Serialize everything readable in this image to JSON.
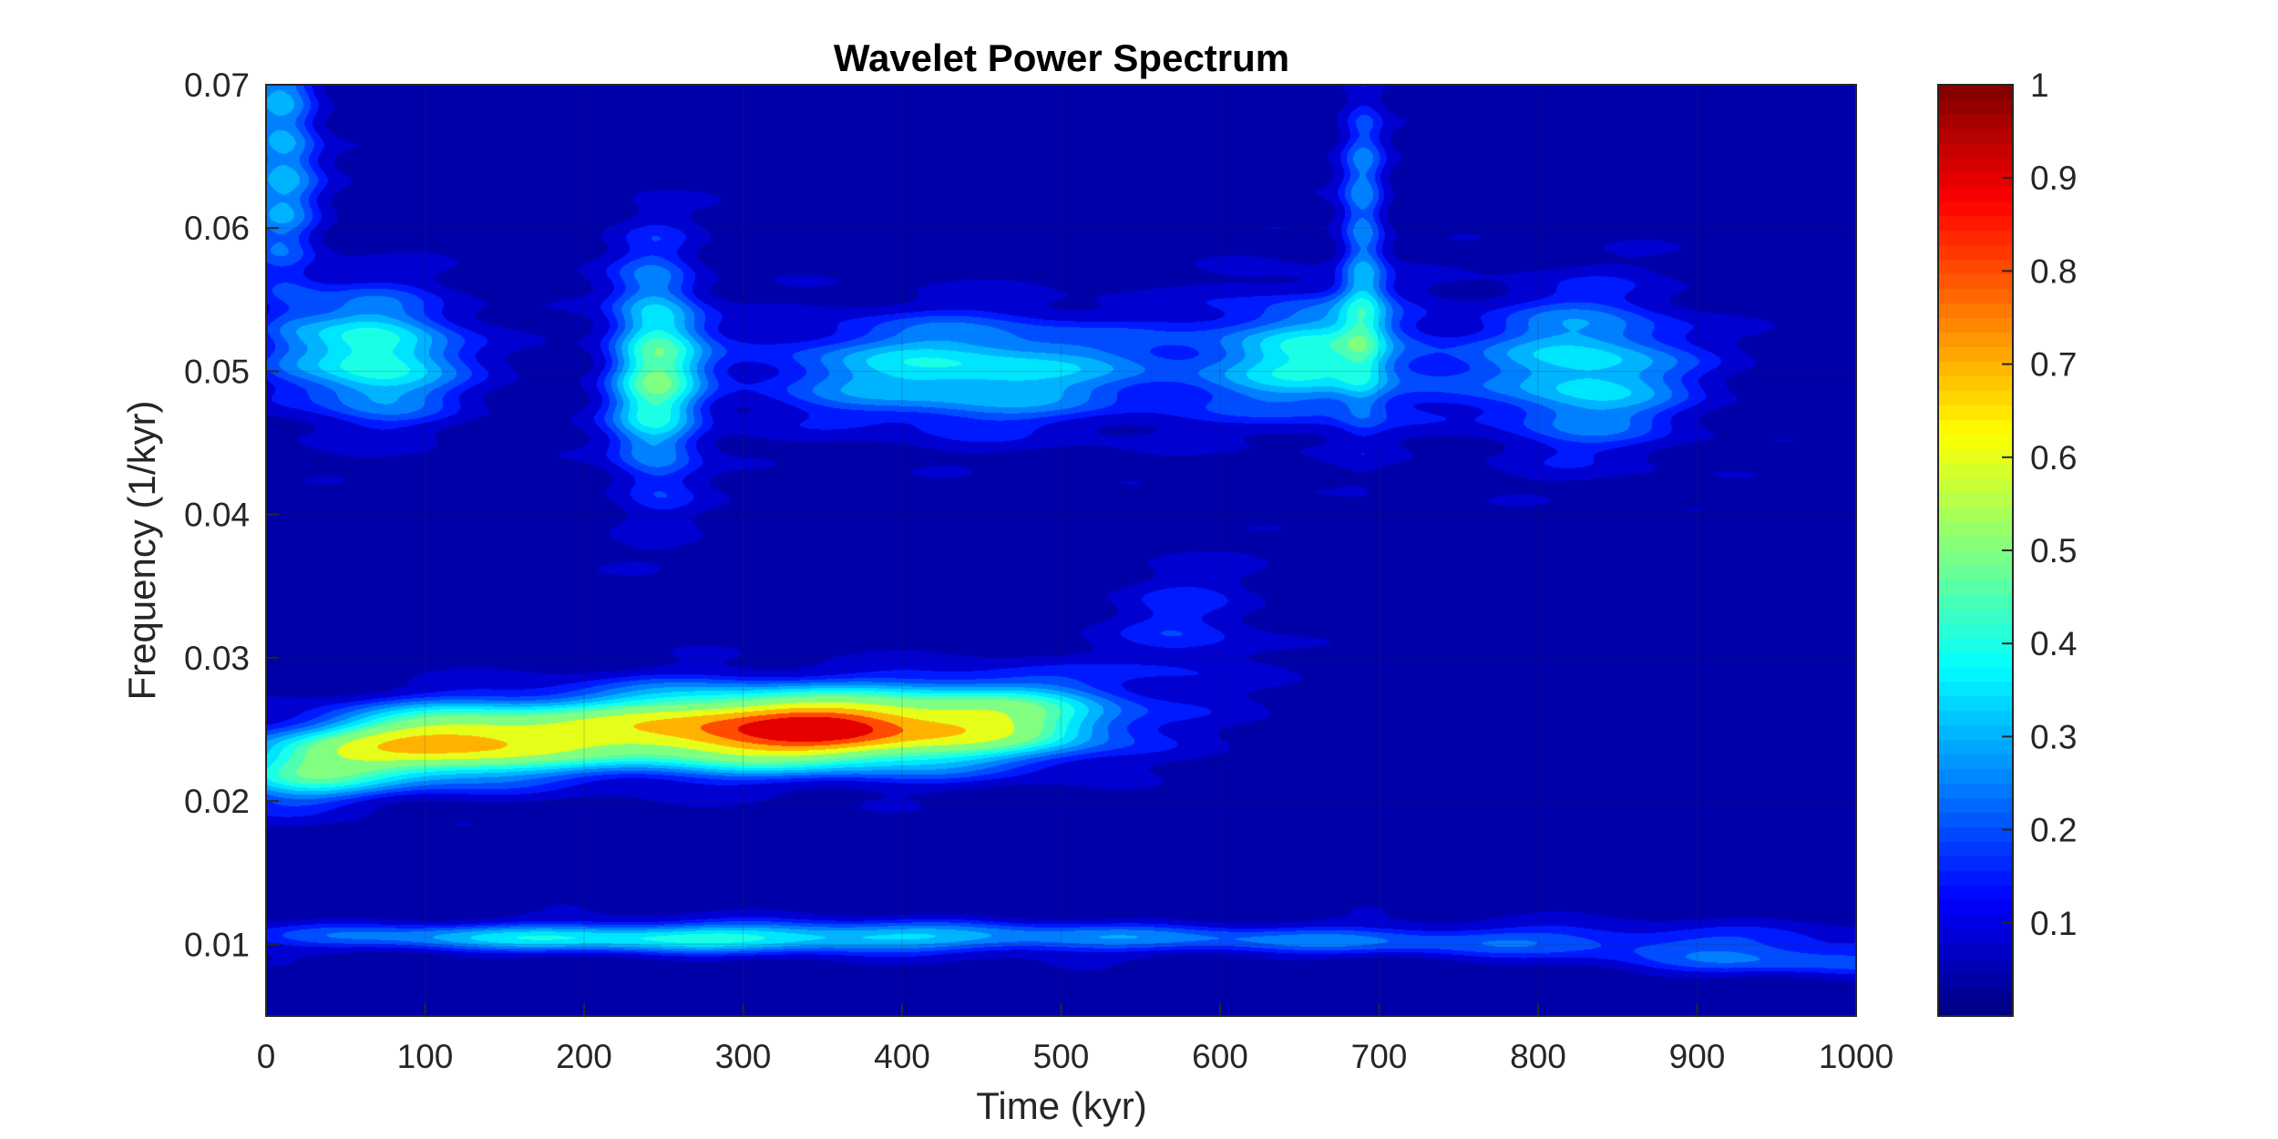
{
  "chart_data": {
    "type": "heatmap",
    "subtype": "filled-contour",
    "title": "Wavelet Power Spectrum",
    "xlabel": "Time (kyr)",
    "ylabel": "Frequency (1/kyr)",
    "xlim": [
      0,
      1000
    ],
    "ylim": [
      0.005,
      0.07
    ],
    "xticks": [
      0,
      100,
      200,
      300,
      400,
      500,
      600,
      700,
      800,
      900,
      1000
    ],
    "yticks": [
      0.01,
      0.02,
      0.03,
      0.04,
      0.05,
      0.06,
      0.07
    ],
    "ytick_labels": [
      "0.01",
      "0.02",
      "0.03",
      "0.04",
      "0.05",
      "0.06",
      "0.07"
    ],
    "grid": true,
    "colormap": "jet",
    "colorbar": {
      "range": [
        0,
        1
      ],
      "ticks": [
        0.1,
        0.2,
        0.3,
        0.4,
        0.5,
        0.6,
        0.7,
        0.8,
        0.9,
        1
      ],
      "tick_labels": [
        "0.1",
        "0.2",
        "0.3",
        "0.4",
        "0.5",
        "0.6",
        "0.7",
        "0.8",
        "0.9",
        "1"
      ],
      "position": "right"
    },
    "contour_levels": [
      0.08,
      0.15,
      0.2,
      0.25,
      0.3,
      0.35,
      0.4,
      0.45,
      0.5,
      0.6,
      0.7,
      0.8,
      0.9
    ],
    "features": [
      {
        "time": 320,
        "freq": 0.025,
        "time_halfwidth": 150,
        "freq_halfwidth": 0.0028,
        "power": 0.83
      },
      {
        "time": 350,
        "freq": 0.025,
        "time_halfwidth": 45,
        "freq_halfwidth": 0.0014,
        "power": 0.17
      },
      {
        "time": 110,
        "freq": 0.024,
        "time_halfwidth": 85,
        "freq_halfwidth": 0.0025,
        "power": 0.6
      },
      {
        "time": 470,
        "freq": 0.026,
        "time_halfwidth": 75,
        "freq_halfwidth": 0.003,
        "power": 0.28
      },
      {
        "time": 20,
        "freq": 0.022,
        "time_halfwidth": 60,
        "freq_halfwidth": 0.0025,
        "power": 0.35
      },
      {
        "time": 260,
        "freq": 0.0105,
        "time_halfwidth": 260,
        "freq_halfwidth": 0.0011,
        "power": 0.38
      },
      {
        "time": 750,
        "freq": 0.0103,
        "time_halfwidth": 290,
        "freq_halfwidth": 0.0012,
        "power": 0.2
      },
      {
        "time": 960,
        "freq": 0.0088,
        "time_halfwidth": 120,
        "freq_halfwidth": 0.0012,
        "power": 0.18
      },
      {
        "time": 70,
        "freq": 0.051,
        "time_halfwidth": 55,
        "freq_halfwidth": 0.0045,
        "power": 0.43
      },
      {
        "time": 245,
        "freq": 0.05,
        "time_halfwidth": 30,
        "freq_halfwidth": 0.0085,
        "power": 0.43
      },
      {
        "time": 440,
        "freq": 0.05,
        "time_halfwidth": 130,
        "freq_halfwidth": 0.004,
        "power": 0.37
      },
      {
        "time": 660,
        "freq": 0.051,
        "time_halfwidth": 70,
        "freq_halfwidth": 0.0045,
        "power": 0.36
      },
      {
        "time": 830,
        "freq": 0.05,
        "time_halfwidth": 70,
        "freq_halfwidth": 0.0055,
        "power": 0.36
      },
      {
        "time": 10,
        "freq": 0.066,
        "time_halfwidth": 25,
        "freq_halfwidth": 0.012,
        "power": 0.3
      },
      {
        "time": 690,
        "freq": 0.06,
        "time_halfwidth": 15,
        "freq_halfwidth": 0.012,
        "power": 0.25
      },
      {
        "time": 580,
        "freq": 0.032,
        "time_halfwidth": 50,
        "freq_halfwidth": 0.005,
        "power": 0.15
      }
    ]
  }
}
